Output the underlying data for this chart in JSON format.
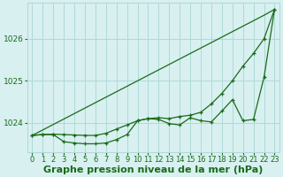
{
  "title": "Graphe pression niveau de la mer (hPa)",
  "xlabel_hours": [
    0,
    1,
    2,
    3,
    4,
    5,
    6,
    7,
    8,
    9,
    10,
    11,
    12,
    13,
    14,
    15,
    16,
    17,
    18,
    19,
    20,
    21,
    22,
    23
  ],
  "line_straight": [
    1023.7,
    1023.83,
    1023.96,
    1024.09,
    1024.22,
    1024.35,
    1024.48,
    1024.61,
    1024.74,
    1024.87,
    1025.0,
    1025.13,
    1025.26,
    1025.39,
    1025.52,
    1025.65,
    1025.78,
    1025.91,
    1026.04,
    1026.17,
    1026.3,
    1026.43,
    1026.56,
    1026.7
  ],
  "line_smooth": [
    1023.7,
    1023.72,
    1023.73,
    1023.72,
    1023.71,
    1023.7,
    1023.7,
    1023.75,
    1023.85,
    1023.95,
    1024.05,
    1024.1,
    1024.12,
    1024.1,
    1024.15,
    1024.18,
    1024.25,
    1024.45,
    1024.7,
    1025.0,
    1025.35,
    1025.65,
    1026.0,
    1026.7
  ],
  "line_jagged": [
    1023.7,
    1023.72,
    1023.72,
    1023.55,
    1023.52,
    1023.5,
    1023.5,
    1023.52,
    1023.6,
    1023.72,
    1024.05,
    1024.1,
    1024.08,
    1023.98,
    1023.95,
    1024.12,
    1024.05,
    1024.02,
    1024.28,
    1024.55,
    1024.05,
    1024.08,
    1025.08,
    1026.7
  ],
  "ylim_min": 1023.3,
  "ylim_max": 1026.85,
  "yticks": [
    1024,
    1025,
    1026
  ],
  "line_color": "#1a6b1a",
  "bg_color": "#d8f0f0",
  "grid_color": "#b0d8d8",
  "title_color": "#1a6b1a",
  "title_fontsize": 8.0,
  "tick_fontsize": 6.5
}
